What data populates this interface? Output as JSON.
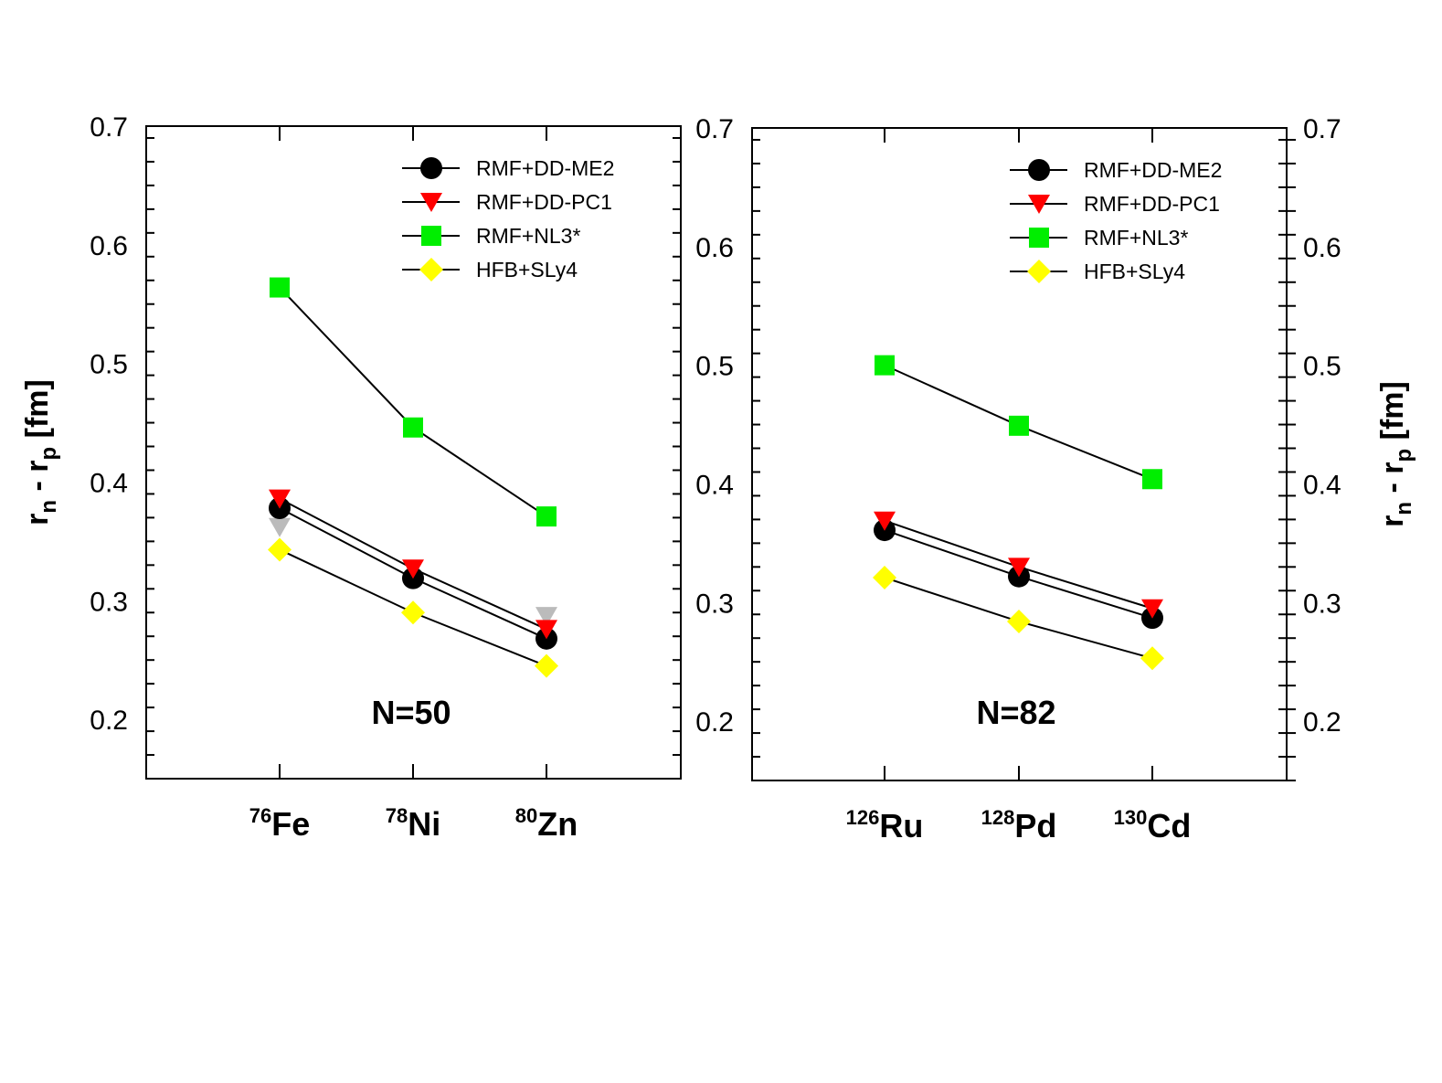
{
  "chart_data": [
    {
      "type": "line",
      "panel": "left",
      "annotation": "N=50",
      "ylabel": {
        "main": "r",
        "sub1": "n",
        "mid": " - r",
        "sub2": "p",
        "unit": " [fm]"
      },
      "ylim": [
        0.15,
        0.7
      ],
      "yticks": [
        "0.2",
        "0.3",
        "0.4",
        "0.5",
        "0.6",
        "0.7"
      ],
      "categories": [
        {
          "mass": "76",
          "symbol": "Fe"
        },
        {
          "mass": "78",
          "symbol": "Ni"
        },
        {
          "mass": "80",
          "symbol": "Zn"
        }
      ],
      "series": [
        {
          "name": "RMF+DD-ME2",
          "marker": "circle",
          "color": "#000000",
          "values": [
            0.378,
            0.319,
            0.268
          ]
        },
        {
          "name": "RMF+DD-PC1",
          "marker": "triangle-down",
          "color": "#ff0000",
          "values": [
            0.386,
            0.327,
            0.276
          ]
        },
        {
          "name": "RMF+NL3*",
          "marker": "square",
          "color": "#00ee00",
          "values": [
            0.564,
            0.446,
            0.371
          ]
        },
        {
          "name": "HFB+SLy4",
          "marker": "diamond",
          "color": "#ffff00",
          "values": [
            0.343,
            0.29,
            0.245
          ]
        }
      ],
      "extra_markers": [
        {
          "marker": "triangle-down",
          "color": "#bbbbbb",
          "category_index": 0,
          "value": 0.362
        },
        {
          "marker": "triangle-down",
          "color": "#bbbbbb",
          "category_index": 2,
          "value": 0.287
        }
      ]
    },
    {
      "type": "line",
      "panel": "right",
      "annotation": "N=82",
      "ylabel": {
        "main": "r",
        "sub1": "n",
        "mid": " - r",
        "sub2": "p",
        "unit": " [fm]"
      },
      "ylim": [
        0.15,
        0.7
      ],
      "yticks": [
        "0.2",
        "0.3",
        "0.4",
        "0.5",
        "0.6",
        "0.7"
      ],
      "categories": [
        {
          "mass": "126",
          "symbol": "Ru"
        },
        {
          "mass": "128",
          "symbol": "Pd"
        },
        {
          "mass": "130",
          "symbol": "Cd"
        }
      ],
      "series": [
        {
          "name": "RMF+DD-ME2",
          "marker": "circle",
          "color": "#000000",
          "values": [
            0.361,
            0.322,
            0.287
          ]
        },
        {
          "name": "RMF+DD-PC1",
          "marker": "triangle-down",
          "color": "#ff0000",
          "values": [
            0.369,
            0.33,
            0.295
          ]
        },
        {
          "name": "RMF+NL3*",
          "marker": "square",
          "color": "#00ee00",
          "values": [
            0.5,
            0.449,
            0.404
          ]
        },
        {
          "name": "HFB+SLy4",
          "marker": "diamond",
          "color": "#ffff00",
          "values": [
            0.321,
            0.284,
            0.253
          ]
        }
      ],
      "extra_markers": []
    }
  ]
}
